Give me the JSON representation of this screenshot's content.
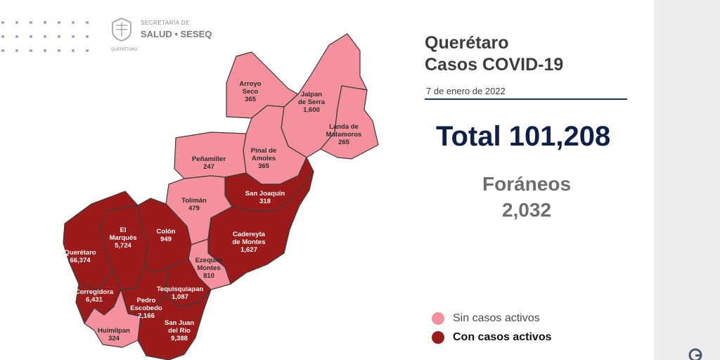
{
  "header": {
    "agency_line1": "SECRETARÍA DE",
    "agency_line2": "SALUD • SESEQ",
    "agency_state": "QUERÉTARO"
  },
  "report": {
    "title_line1": "Querétaro",
    "title_line2": "Casos COVID-19",
    "date": "7 de enero de 2022",
    "total": "Total 101,208",
    "foraneos_label": "Foráneos",
    "foraneos_value": "2,032"
  },
  "legend": {
    "inactive_label": "Sin casos activos",
    "active_label": "Con casos activos",
    "inactive_color": "#f4919c",
    "active_color": "#9b1b1b"
  },
  "municipalities": [
    {
      "id": "arroyo-seco",
      "name_lines": [
        "Arroyo",
        "Seco"
      ],
      "cases": "365",
      "active": false
    },
    {
      "id": "jalpan",
      "name_lines": [
        "Jalpan",
        "de Serra"
      ],
      "cases": "1,600",
      "active": false
    },
    {
      "id": "landa",
      "name_lines": [
        "Landa de",
        "Matamoros"
      ],
      "cases": "265",
      "active": false
    },
    {
      "id": "pinal",
      "name_lines": [
        "Pinal de",
        "Amoles"
      ],
      "cases": "365",
      "active": false
    },
    {
      "id": "penamiller",
      "name_lines": [
        "Peñamiller"
      ],
      "cases": "247",
      "active": false
    },
    {
      "id": "san-joaquin",
      "name_lines": [
        "San Joaquín"
      ],
      "cases": "318",
      "active": true
    },
    {
      "id": "toliman",
      "name_lines": [
        "Tolimán"
      ],
      "cases": "479",
      "active": false
    },
    {
      "id": "cadereyta",
      "name_lines": [
        "Cadereyta",
        "de Montes"
      ],
      "cases": "1,627",
      "active": true
    },
    {
      "id": "colon",
      "name_lines": [
        "Colón"
      ],
      "cases": "949",
      "active": true
    },
    {
      "id": "el-marques",
      "name_lines": [
        "El",
        "Marqués"
      ],
      "cases": "5,724",
      "active": true
    },
    {
      "id": "queretaro",
      "name_lines": [
        "Querétaro"
      ],
      "cases": "66,374",
      "active": true
    },
    {
      "id": "ezequiel",
      "name_lines": [
        "Ezequiel",
        "Montes"
      ],
      "cases": "810",
      "active": false
    },
    {
      "id": "tequisquiapan",
      "name_lines": [
        "Tequisquiapan"
      ],
      "cases": "1,087",
      "active": true
    },
    {
      "id": "corregidora",
      "name_lines": [
        "Corregidora"
      ],
      "cases": "6,431",
      "active": true
    },
    {
      "id": "pedro-escobedo",
      "name_lines": [
        "Pedro",
        "Escobedo"
      ],
      "cases": "2,166",
      "active": true
    },
    {
      "id": "huimilpan",
      "name_lines": [
        "Huimilpan"
      ],
      "cases": "324",
      "active": false
    },
    {
      "id": "san-juan",
      "name_lines": [
        "San Juan",
        "del Río"
      ],
      "cases": "9,388",
      "active": true
    }
  ]
}
